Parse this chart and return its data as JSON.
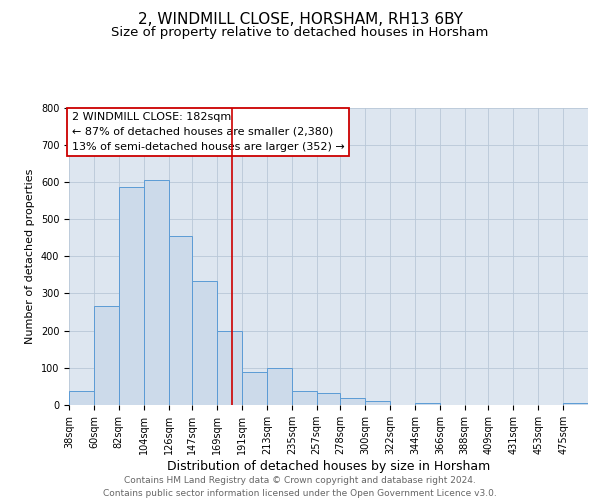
{
  "title": "2, WINDMILL CLOSE, HORSHAM, RH13 6BY",
  "subtitle": "Size of property relative to detached houses in Horsham",
  "xlabel": "Distribution of detached houses by size in Horsham",
  "ylabel": "Number of detached properties",
  "bar_edges": [
    38,
    60,
    82,
    104,
    126,
    147,
    169,
    191,
    213,
    235,
    257,
    278,
    300,
    322,
    344,
    366,
    388,
    409,
    431,
    453,
    475
  ],
  "bar_heights": [
    38,
    265,
    585,
    605,
    455,
    333,
    198,
    90,
    100,
    38,
    32,
    18,
    10,
    0,
    5,
    0,
    0,
    0,
    0,
    0,
    5
  ],
  "bar_color": "#ccdaea",
  "bar_edge_color": "#5b9bd5",
  "ylim": [
    0,
    800
  ],
  "yticks": [
    0,
    100,
    200,
    300,
    400,
    500,
    600,
    700,
    800
  ],
  "property_size": 182,
  "vline_color": "#cc0000",
  "annotation_title": "2 WINDMILL CLOSE: 182sqm",
  "annotation_line1": "← 87% of detached houses are smaller (2,380)",
  "annotation_line2": "13% of semi-detached houses are larger (352) →",
  "annotation_box_color": "#ffffff",
  "annotation_border_color": "#cc0000",
  "grid_color": "#b8c8d8",
  "bg_color": "#dde6f0",
  "footer_line1": "Contains HM Land Registry data © Crown copyright and database right 2024.",
  "footer_line2": "Contains public sector information licensed under the Open Government Licence v3.0.",
  "title_fontsize": 11,
  "subtitle_fontsize": 9.5,
  "xlabel_fontsize": 9,
  "ylabel_fontsize": 8,
  "tick_fontsize": 7,
  "annotation_fontsize": 8,
  "footer_fontsize": 6.5
}
